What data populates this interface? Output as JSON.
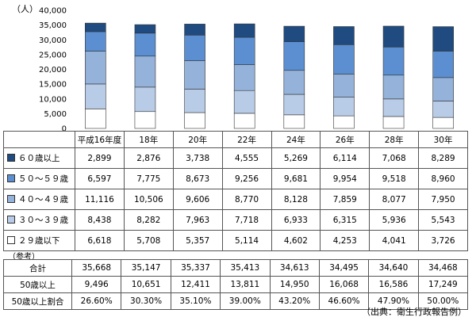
{
  "unit_label": "（人）",
  "reference_label": "（参考）",
  "source": "（出典：衛生行政報告例）",
  "chart_data": {
    "type": "bar",
    "stacked": true,
    "ylim": [
      0,
      40000
    ],
    "yticks": [
      "40,000",
      "35,000",
      "30,000",
      "25,000",
      "20,000",
      "15,000",
      "10,000",
      "5,000",
      "0"
    ],
    "grid": false,
    "categories": [
      "平成16年度",
      "18年",
      "20年",
      "22年",
      "24年",
      "26年",
      "28年",
      "30年"
    ],
    "series": [
      {
        "name": "２９歳以下",
        "color": "#ffffff",
        "values": [
          6618,
          5708,
          5357,
          5114,
          4602,
          4253,
          4041,
          3726
        ],
        "labels": [
          "6,618",
          "5,708",
          "5,357",
          "5,114",
          "4,602",
          "4,253",
          "4,041",
          "3,726"
        ]
      },
      {
        "name": "３０～３９歳",
        "color": "#b8cce8",
        "values": [
          8438,
          8282,
          7963,
          7718,
          6933,
          6315,
          5936,
          5543
        ],
        "labels": [
          "8,438",
          "8,282",
          "7,963",
          "7,718",
          "6,933",
          "6,315",
          "5,936",
          "5,543"
        ]
      },
      {
        "name": "４０～４９歳",
        "color": "#94b2da",
        "values": [
          11116,
          10506,
          9606,
          8770,
          8128,
          7859,
          8077,
          7950
        ],
        "labels": [
          "11,116",
          "10,506",
          "9,606",
          "8,770",
          "8,128",
          "7,859",
          "8,077",
          "7,950"
        ]
      },
      {
        "name": "５０～５９歳",
        "color": "#5b8fd2",
        "values": [
          6597,
          7775,
          8673,
          9256,
          9681,
          9954,
          9518,
          8960
        ],
        "labels": [
          "6,597",
          "7,775",
          "8,673",
          "9,256",
          "9,681",
          "9,954",
          "9,518",
          "8,960"
        ]
      },
      {
        "name": "６０歳以上",
        "color": "#1f4b80",
        "values": [
          2899,
          2876,
          3738,
          4555,
          5269,
          6114,
          7068,
          8289
        ],
        "labels": [
          "2,899",
          "2,876",
          "3,738",
          "4,555",
          "5,269",
          "6,114",
          "7,068",
          "8,289"
        ]
      }
    ]
  },
  "reference": {
    "rows": [
      {
        "label": "合計",
        "cells": [
          "35,668",
          "35,147",
          "35,337",
          "35,413",
          "34,613",
          "34,495",
          "34,640",
          "34,468"
        ]
      },
      {
        "label": "50歳以上",
        "cells": [
          "9,496",
          "10,651",
          "12,411",
          "13,811",
          "14,950",
          "16,068",
          "16,586",
          "17,249"
        ]
      },
      {
        "label": "50歳以上割合",
        "cells": [
          "26.60%",
          "30.30%",
          "35.10%",
          "39.00%",
          "43.20%",
          "46.60%",
          "47.90%",
          "50.00%"
        ]
      }
    ]
  }
}
